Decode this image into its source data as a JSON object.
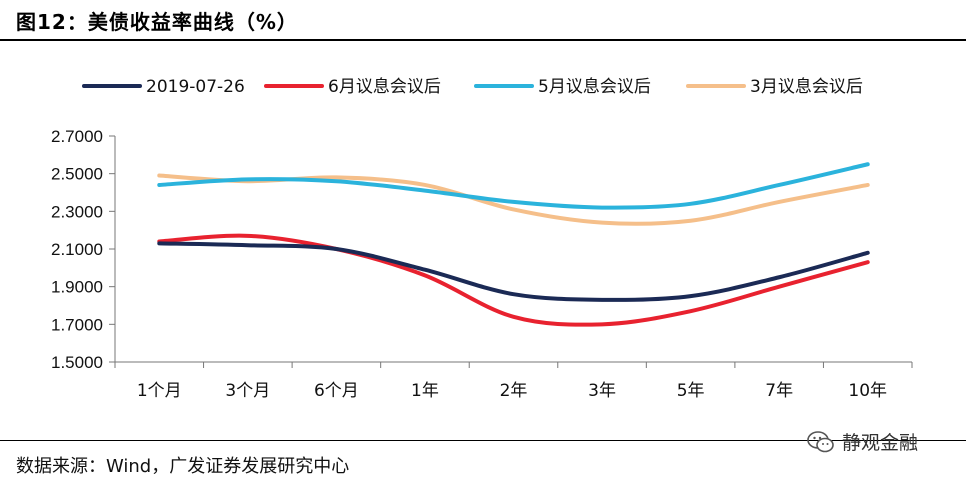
{
  "header": {
    "title": "图12：美债收益率曲线（%）"
  },
  "footer": {
    "source": "数据来源：Wind，广发证券发展研究中心",
    "watermark": "静观金融"
  },
  "colors": {
    "series1": "#1b2a55",
    "series2": "#e8222f",
    "series3": "#2bb3dc",
    "series4": "#f5bf8a"
  },
  "chart_data": {
    "type": "line",
    "title": "美债收益率曲线（%）",
    "categories": [
      "1个月",
      "3个月",
      "6个月",
      "1年",
      "2年",
      "3年",
      "5年",
      "7年",
      "10年"
    ],
    "ylim": [
      1.5,
      2.7
    ],
    "yticks": [
      "2.7000",
      "2.5000",
      "2.3000",
      "2.1000",
      "1.9000",
      "1.7000",
      "1.5000"
    ],
    "ytick_values": [
      2.7,
      2.5,
      2.3,
      2.1,
      1.9,
      1.7,
      1.5
    ],
    "legend_position": "top",
    "series": [
      {
        "name": "2019-07-26",
        "color": "#1b2a55",
        "values": [
          2.13,
          2.12,
          2.1,
          1.99,
          1.86,
          1.83,
          1.85,
          1.95,
          2.08
        ]
      },
      {
        "name": "6月议息会议后",
        "color": "#e8222f",
        "values": [
          2.14,
          2.17,
          2.1,
          1.96,
          1.74,
          1.7,
          1.77,
          1.9,
          2.03
        ]
      },
      {
        "name": "5月议息会议后",
        "color": "#2bb3dc",
        "values": [
          2.44,
          2.47,
          2.46,
          2.41,
          2.35,
          2.32,
          2.34,
          2.44,
          2.55
        ]
      },
      {
        "name": "3月议息会议后",
        "color": "#f5bf8a",
        "values": [
          2.49,
          2.46,
          2.48,
          2.44,
          2.31,
          2.24,
          2.25,
          2.35,
          2.44
        ]
      }
    ]
  }
}
